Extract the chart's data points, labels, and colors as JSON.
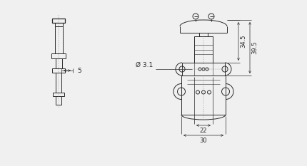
{
  "bg_color": "#f0f0f0",
  "line_color": "#2a2a2a",
  "lw": 0.7,
  "lw_thin": 0.4,
  "lw_thick": 0.9,
  "dim_lw": 0.5,
  "fig_width": 4.3,
  "fig_height": 2.33,
  "dpi": 100,
  "labels": {
    "dim5": "5",
    "dimD": "Ø 3.1",
    "dim345": "34.5",
    "dim395": "39.5",
    "dim22": "22",
    "dim30": "30"
  }
}
